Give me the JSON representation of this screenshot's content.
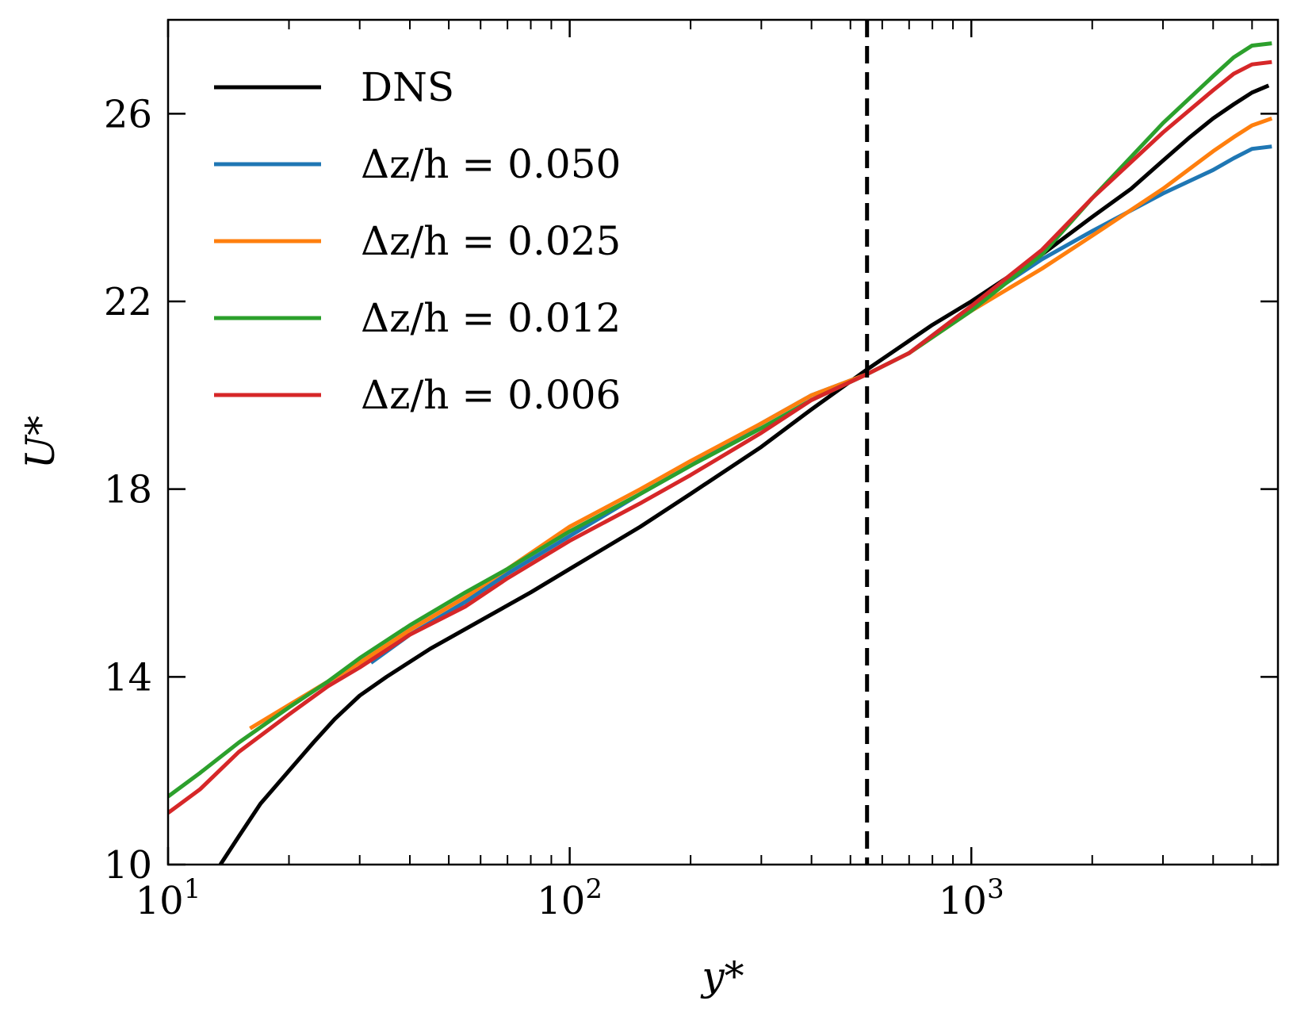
{
  "chart_data": {
    "type": "line",
    "xscale": "log",
    "xlabel": "y*",
    "ylabel": "U*",
    "xlim": [
      10,
      5800
    ],
    "ylim": [
      10,
      28
    ],
    "yticks": [
      10,
      14,
      18,
      22,
      26
    ],
    "ytick_labels": [
      "10",
      "14",
      "18",
      "22",
      "26"
    ],
    "xticks": [
      10,
      100,
      1000
    ],
    "xtick_labels": [
      {
        "base": "10",
        "exp": "1"
      },
      {
        "base": "10",
        "exp": "2"
      },
      {
        "base": "10",
        "exp": "3"
      }
    ],
    "vline": {
      "x": 550,
      "style": "dashed",
      "color": "#000000"
    },
    "legend_position": "top-left",
    "series": [
      {
        "name": "DNS",
        "color": "#000000",
        "points": [
          [
            13.5,
            10.0
          ],
          [
            15,
            10.6
          ],
          [
            17,
            11.3
          ],
          [
            20,
            12.0
          ],
          [
            23,
            12.6
          ],
          [
            26,
            13.1
          ],
          [
            30,
            13.6
          ],
          [
            35,
            14.0
          ],
          [
            45,
            14.6
          ],
          [
            60,
            15.2
          ],
          [
            80,
            15.8
          ],
          [
            100,
            16.3
          ],
          [
            150,
            17.2
          ],
          [
            200,
            17.9
          ],
          [
            300,
            18.9
          ],
          [
            400,
            19.7
          ],
          [
            550,
            20.55
          ],
          [
            800,
            21.5
          ],
          [
            1000,
            22.0
          ],
          [
            1500,
            23.0
          ],
          [
            2000,
            23.8
          ],
          [
            2500,
            24.4
          ],
          [
            3000,
            25.0
          ],
          [
            3500,
            25.5
          ],
          [
            4000,
            25.9
          ],
          [
            4500,
            26.2
          ],
          [
            5000,
            26.45
          ],
          [
            5500,
            26.6
          ]
        ]
      },
      {
        "name": "Δz/h = 0.050",
        "color": "#1f77b4",
        "points": [
          [
            32,
            14.3
          ],
          [
            40,
            14.9
          ],
          [
            55,
            15.6
          ],
          [
            70,
            16.2
          ],
          [
            100,
            17.0
          ],
          [
            150,
            17.9
          ],
          [
            200,
            18.5
          ],
          [
            300,
            19.4
          ],
          [
            400,
            20.0
          ],
          [
            550,
            20.45
          ],
          [
            700,
            20.9
          ],
          [
            1000,
            21.9
          ],
          [
            1500,
            22.9
          ],
          [
            2000,
            23.5
          ],
          [
            3000,
            24.3
          ],
          [
            4000,
            24.8
          ],
          [
            4500,
            25.05
          ],
          [
            5000,
            25.25
          ],
          [
            5600,
            25.3
          ]
        ]
      },
      {
        "name": "Δz/h = 0.025",
        "color": "#ff7f0e",
        "points": [
          [
            16,
            12.9
          ],
          [
            20,
            13.4
          ],
          [
            25,
            13.9
          ],
          [
            30,
            14.3
          ],
          [
            40,
            15.0
          ],
          [
            55,
            15.7
          ],
          [
            70,
            16.3
          ],
          [
            100,
            17.2
          ],
          [
            150,
            18.0
          ],
          [
            200,
            18.6
          ],
          [
            300,
            19.4
          ],
          [
            400,
            20.0
          ],
          [
            550,
            20.45
          ],
          [
            700,
            20.9
          ],
          [
            1000,
            21.8
          ],
          [
            1500,
            22.7
          ],
          [
            2000,
            23.4
          ],
          [
            3000,
            24.4
          ],
          [
            4000,
            25.2
          ],
          [
            4500,
            25.5
          ],
          [
            5000,
            25.75
          ],
          [
            5600,
            25.9
          ]
        ]
      },
      {
        "name": "Δz/h = 0.012",
        "color": "#2ca02c",
        "points": [
          [
            10,
            11.45
          ],
          [
            12,
            11.95
          ],
          [
            15,
            12.6
          ],
          [
            20,
            13.35
          ],
          [
            25,
            13.9
          ],
          [
            30,
            14.4
          ],
          [
            40,
            15.1
          ],
          [
            55,
            15.8
          ],
          [
            70,
            16.3
          ],
          [
            100,
            17.1
          ],
          [
            150,
            17.9
          ],
          [
            200,
            18.5
          ],
          [
            300,
            19.3
          ],
          [
            400,
            19.9
          ],
          [
            550,
            20.45
          ],
          [
            700,
            20.9
          ],
          [
            1000,
            21.8
          ],
          [
            1500,
            23.0
          ],
          [
            2000,
            24.2
          ],
          [
            3000,
            25.8
          ],
          [
            4000,
            26.8
          ],
          [
            4500,
            27.2
          ],
          [
            5000,
            27.45
          ],
          [
            5600,
            27.5
          ]
        ]
      },
      {
        "name": "Δz/h = 0.006",
        "color": "#d62728",
        "points": [
          [
            10,
            11.1
          ],
          [
            12,
            11.6
          ],
          [
            15,
            12.4
          ],
          [
            20,
            13.2
          ],
          [
            25,
            13.8
          ],
          [
            30,
            14.2
          ],
          [
            40,
            14.9
          ],
          [
            55,
            15.5
          ],
          [
            70,
            16.1
          ],
          [
            100,
            16.9
          ],
          [
            150,
            17.7
          ],
          [
            200,
            18.3
          ],
          [
            300,
            19.2
          ],
          [
            400,
            19.9
          ],
          [
            550,
            20.45
          ],
          [
            700,
            20.9
          ],
          [
            1000,
            21.9
          ],
          [
            1500,
            23.1
          ],
          [
            2000,
            24.2
          ],
          [
            3000,
            25.6
          ],
          [
            4000,
            26.5
          ],
          [
            4500,
            26.85
          ],
          [
            5000,
            27.05
          ],
          [
            5600,
            27.1
          ]
        ]
      }
    ]
  }
}
